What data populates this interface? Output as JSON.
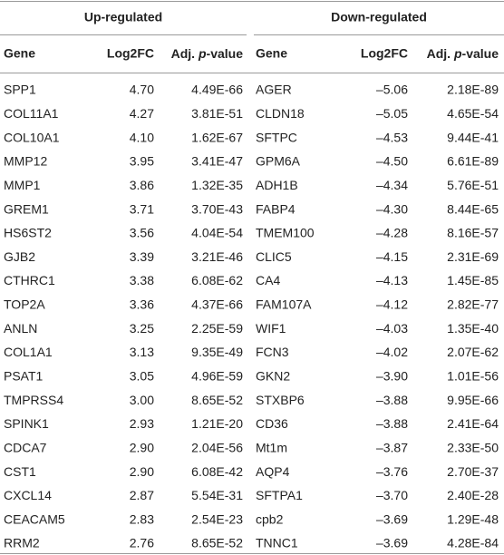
{
  "table": {
    "group_headers": [
      "Up-regulated",
      "Down-regulated"
    ],
    "columns": [
      "Gene",
      "Log2FC",
      [
        "Adj. ",
        "p",
        "-value"
      ],
      "Gene",
      "Log2FC",
      [
        "Adj. ",
        "p",
        "-value"
      ]
    ],
    "rows": [
      [
        "SPP1",
        "4.70",
        "4.49E-66",
        "AGER",
        "–5.06",
        "2.18E-89"
      ],
      [
        "COL11A1",
        "4.27",
        "3.81E-51",
        "CLDN18",
        "–5.05",
        "4.65E-54"
      ],
      [
        "COL10A1",
        "4.10",
        "1.62E-67",
        "SFTPC",
        "–4.53",
        "9.44E-41"
      ],
      [
        "MMP12",
        "3.95",
        "3.41E-47",
        "GPM6A",
        "–4.50",
        "6.61E-89"
      ],
      [
        "MMP1",
        "3.86",
        "1.32E-35",
        "ADH1B",
        "–4.34",
        "5.76E-51"
      ],
      [
        "GREM1",
        "3.71",
        "3.70E-43",
        "FABP4",
        "–4.30",
        "8.44E-65"
      ],
      [
        "HS6ST2",
        "3.56",
        "4.04E-54",
        "TMEM100",
        "–4.28",
        "8.16E-57"
      ],
      [
        "GJB2",
        "3.39",
        "3.21E-46",
        "CLIC5",
        "–4.15",
        "2.31E-69"
      ],
      [
        "CTHRC1",
        "3.38",
        "6.08E-62",
        "CA4",
        "–4.13",
        "1.45E-85"
      ],
      [
        "TOP2A",
        "3.36",
        "4.37E-66",
        "FAM107A",
        "–4.12",
        "2.82E-77"
      ],
      [
        "ANLN",
        "3.25",
        "2.25E-59",
        "WIF1",
        "–4.03",
        "1.35E-40"
      ],
      [
        "COL1A1",
        "3.13",
        "9.35E-49",
        "FCN3",
        "–4.02",
        "2.07E-62"
      ],
      [
        "PSAT1",
        "3.05",
        "4.96E-59",
        "GKN2",
        "–3.90",
        "1.01E-56"
      ],
      [
        "TMPRSS4",
        "3.00",
        "8.65E-52",
        "STXBP6",
        "–3.88",
        "9.95E-66"
      ],
      [
        "SPINK1",
        "2.93",
        "1.21E-20",
        "CD36",
        "–3.88",
        "2.41E-64"
      ],
      [
        "CDCA7",
        "2.90",
        "2.04E-56",
        "Mt1m",
        "–3.87",
        "2.33E-50"
      ],
      [
        "CST1",
        "2.90",
        "6.08E-42",
        "AQP4",
        "–3.76",
        "2.70E-37"
      ],
      [
        "CXCL14",
        "2.87",
        "5.54E-31",
        "SFTPA1",
        "–3.70",
        "2.40E-28"
      ],
      [
        "CEACAM5",
        "2.83",
        "2.54E-23",
        "cpb2",
        "–3.69",
        "1.29E-48"
      ],
      [
        "RRM2",
        "2.76",
        "8.65E-52",
        "TNNC1",
        "–3.69",
        "4.28E-84"
      ]
    ]
  }
}
